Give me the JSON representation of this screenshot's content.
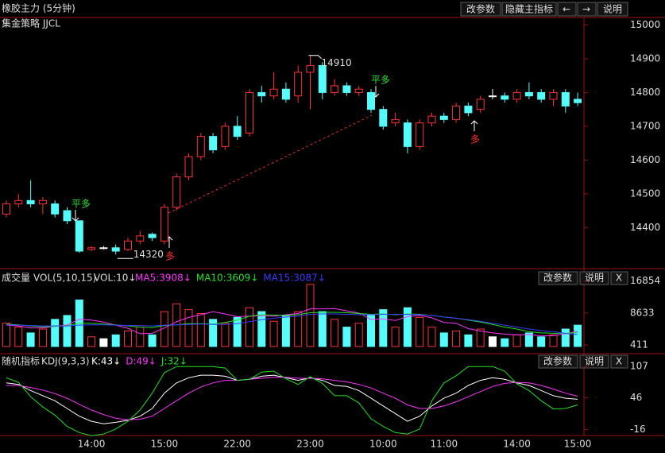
{
  "header": {
    "title": "橡胶主力 (5分钟)",
    "buttons": [
      "改参数",
      "隐藏主指标",
      "←",
      "→",
      "说明"
    ]
  },
  "signals": [
    "平多",
    "多",
    "平多",
    "多"
  ],
  "chart_data": [
    {
      "type": "candlestick",
      "subtitle": "集金策略 JJCL",
      "open": [
        14440,
        14470,
        14480,
        14470,
        14470,
        14450,
        14420,
        14335,
        14340,
        14340,
        14335,
        14360,
        14380,
        14360,
        14460,
        14550,
        14610,
        14670,
        14640,
        14700,
        14680,
        14800,
        14790,
        14810,
        14790,
        14860,
        14880,
        14800,
        14820,
        14800,
        14800,
        14750,
        14710,
        14710,
        14640,
        14710,
        14730,
        14720,
        14760,
        14750,
        14790,
        14790,
        14780,
        14800,
        14800,
        14780,
        14800,
        14780
      ],
      "high": [
        14480,
        14500,
        14540,
        14490,
        14480,
        14460,
        14420,
        14345,
        14345,
        14350,
        14370,
        14390,
        14385,
        14470,
        14560,
        14620,
        14680,
        14680,
        14710,
        14730,
        14810,
        14820,
        14860,
        14830,
        14880,
        14910,
        14890,
        14840,
        14830,
        14820,
        14810,
        14760,
        14740,
        14720,
        14720,
        14740,
        14740,
        14770,
        14770,
        14790,
        14810,
        14800,
        14810,
        14830,
        14810,
        14810,
        14810,
        14800
      ],
      "low": [
        14430,
        14460,
        14460,
        14440,
        14430,
        14410,
        14325,
        14330,
        14335,
        14320,
        14330,
        14350,
        14360,
        14350,
        14450,
        14540,
        14600,
        14620,
        14630,
        14660,
        14670,
        14770,
        14780,
        14770,
        14770,
        14750,
        14780,
        14790,
        14790,
        14790,
        14740,
        14690,
        14700,
        14620,
        14630,
        14700,
        14710,
        14710,
        14730,
        14740,
        14780,
        14770,
        14770,
        14780,
        14770,
        14760,
        14740,
        14760
      ],
      "close": [
        14470,
        14480,
        14470,
        14480,
        14440,
        14420,
        14330,
        14340,
        14340,
        14330,
        14360,
        14375,
        14370,
        14460,
        14550,
        14610,
        14670,
        14630,
        14700,
        14670,
        14800,
        14790,
        14810,
        14780,
        14860,
        14880,
        14800,
        14820,
        14800,
        14810,
        14750,
        14700,
        14720,
        14640,
        14710,
        14730,
        14720,
        14760,
        14740,
        14780,
        14790,
        14780,
        14800,
        14790,
        14780,
        14800,
        14760,
        14770
      ],
      "up_color": "#ff3232",
      "down_color": "#54fcfc",
      "flat_color": "#ffffff",
      "max_label": 14910,
      "min_label": 14320,
      "ylim": [
        14290,
        15020
      ],
      "yticks": [
        14400,
        14500,
        14600,
        14700,
        14800,
        14900,
        15000
      ]
    },
    {
      "type": "bar",
      "title": "成交量",
      "subtitle": "VOL(5,10,15)",
      "current_label": "VOL:10↓",
      "buttons": [
        "改参数",
        "说明",
        "X"
      ],
      "values": [
        6000,
        5000,
        3500,
        4500,
        7000,
        8000,
        12000,
        2500,
        2000,
        3000,
        4000,
        5000,
        3000,
        9000,
        11000,
        9500,
        8500,
        7000,
        6000,
        7500,
        10000,
        9000,
        6500,
        8000,
        9000,
        16000,
        9000,
        7000,
        5000,
        6000,
        8000,
        9500,
        5000,
        10000,
        7500,
        5000,
        3500,
        4000,
        3000,
        4500,
        2500,
        2000,
        3000,
        3500,
        2500,
        3000,
        4500,
        5500
      ],
      "series": [
        {
          "name": "MA5:3908↓",
          "color": "#ff33ff",
          "values": [
            5500,
            5300,
            4800,
            4800,
            5200,
            5600,
            7000,
            6800,
            6300,
            5500,
            4700,
            3300,
            3400,
            4800,
            6400,
            7500,
            8200,
            9000,
            8400,
            7700,
            7800,
            7900,
            7800,
            8200,
            8500,
            9700,
            9700,
            9800,
            9200,
            8600,
            7000,
            7100,
            6700,
            7700,
            8000,
            7400,
            6200,
            6000,
            4600,
            4000,
            3500,
            3200,
            3000,
            3100,
            2700,
            2800,
            3300,
            3908
          ]
        },
        {
          "name": "MA10:3609↓",
          "color": "#22e022",
          "values": [
            5800,
            5600,
            5300,
            5100,
            5200,
            5400,
            6000,
            6000,
            5800,
            5600,
            5300,
            5000,
            4900,
            5400,
            5600,
            5900,
            5900,
            5800,
            6200,
            6800,
            7800,
            8200,
            8100,
            8000,
            8200,
            8700,
            8800,
            8800,
            8700,
            8500,
            8300,
            8400,
            8200,
            8400,
            8300,
            8000,
            7600,
            7300,
            6800,
            6300,
            5700,
            5000,
            4500,
            3800,
            3500,
            3400,
            3400,
            3609
          ]
        },
        {
          "name": "MA15:3087↓",
          "color": "#3a3aff",
          "values": [
            5600,
            5500,
            5400,
            5300,
            5300,
            5300,
            5500,
            5600,
            5600,
            5500,
            5400,
            5400,
            5300,
            5500,
            5600,
            5700,
            5800,
            5700,
            5700,
            5900,
            6400,
            6900,
            7300,
            7600,
            7800,
            8300,
            8400,
            8400,
            8300,
            8200,
            8200,
            8300,
            8300,
            8300,
            8200,
            8000,
            7600,
            7300,
            6900,
            6500,
            6000,
            5500,
            5000,
            4500,
            4100,
            3800,
            3400,
            3087
          ]
        }
      ],
      "ylim": [
        0,
        17000
      ],
      "yticks": [
        411,
        8633,
        16854
      ]
    },
    {
      "type": "line",
      "title": "随机指标",
      "subtitle": "KDJ(9,3,3)",
      "buttons": [
        "改参数",
        "说明",
        "X"
      ],
      "categories": [
        null,
        null,
        null,
        null,
        null,
        null,
        null,
        "14:00",
        null,
        null,
        null,
        null,
        null,
        "15:00",
        null,
        null,
        null,
        null,
        null,
        "22:00",
        null,
        null,
        null,
        null,
        null,
        "23:00",
        null,
        null,
        null,
        null,
        null,
        "10:00",
        null,
        null,
        null,
        null,
        "11:00",
        null,
        null,
        null,
        null,
        null,
        "14:00",
        null,
        null,
        null,
        null,
        "15:00"
      ],
      "series": [
        {
          "name": "K:43↓",
          "color": "#ffffff",
          "values": [
            75,
            72,
            60,
            50,
            40,
            25,
            10,
            0,
            -5,
            -2,
            2,
            10,
            25,
            55,
            75,
            85,
            90,
            90,
            88,
            80,
            82,
            88,
            90,
            85,
            80,
            85,
            80,
            70,
            68,
            60,
            45,
            30,
            15,
            0,
            10,
            30,
            45,
            55,
            70,
            80,
            85,
            82,
            75,
            70,
            60,
            50,
            45,
            43
          ]
        },
        {
          "name": "D:49↓",
          "color": "#ff33ff",
          "values": [
            70,
            70,
            66,
            61,
            54,
            45,
            33,
            22,
            13,
            6,
            3,
            4,
            10,
            25,
            40,
            55,
            67,
            75,
            80,
            80,
            82,
            84,
            86,
            86,
            84,
            84,
            83,
            80,
            77,
            72,
            65,
            55,
            45,
            32,
            25,
            25,
            30,
            38,
            48,
            58,
            68,
            74,
            76,
            75,
            70,
            63,
            55,
            49
          ]
        },
        {
          "name": "J:32↓",
          "color": "#22e022",
          "values": [
            85,
            76,
            48,
            28,
            12,
            -10,
            -22,
            -28,
            -25,
            -15,
            0,
            22,
            55,
            95,
            107,
            107,
            107,
            107,
            104,
            80,
            82,
            96,
            98,
            83,
            72,
            87,
            74,
            50,
            50,
            36,
            5,
            -10,
            -22,
            -25,
            -15,
            40,
            75,
            89,
            107,
            107,
            107,
            98,
            73,
            60,
            40,
            24,
            25,
            32
          ]
        }
      ],
      "ylim": [
        -20,
        115
      ],
      "yticks": [
        -16,
        46,
        107
      ]
    }
  ]
}
